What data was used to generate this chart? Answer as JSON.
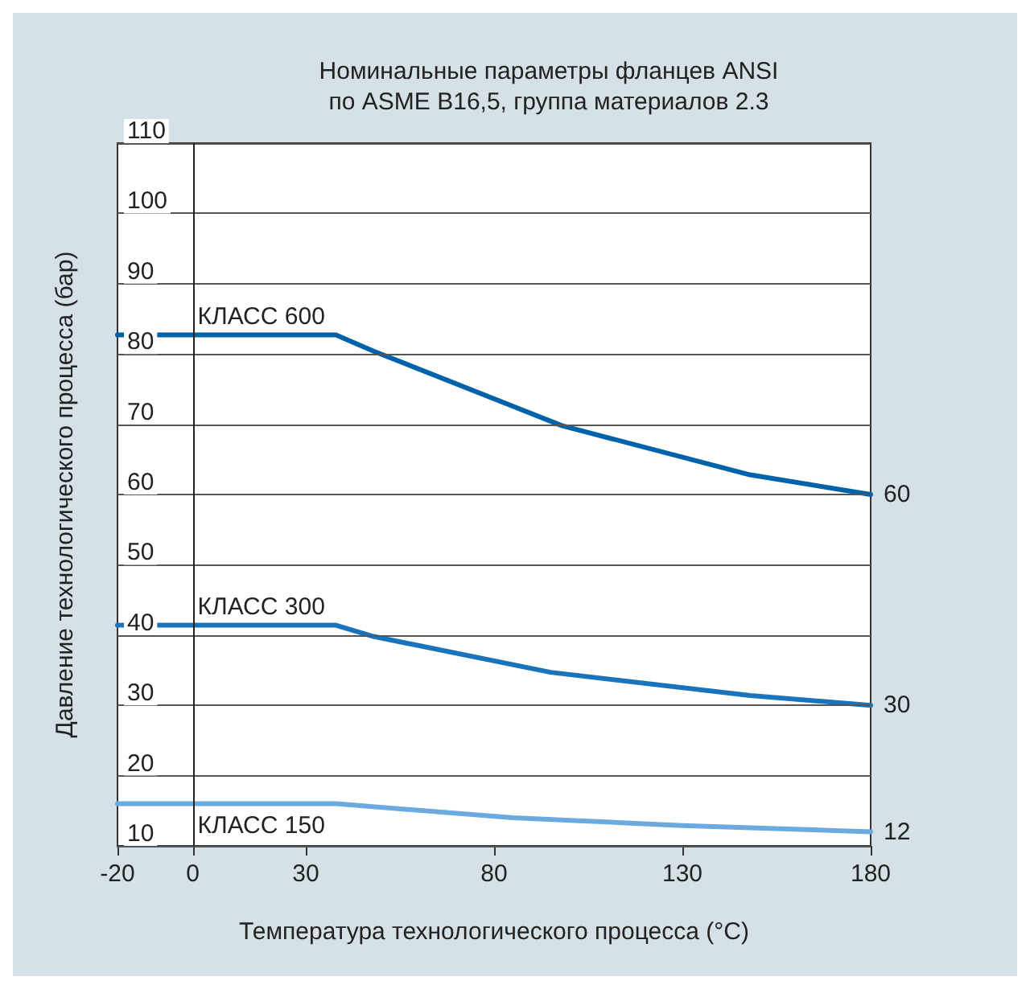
{
  "chart_data": {
    "type": "line",
    "title": "Номинальные параметры фланцев ANSI\nпо ASME B16,5, группа материалов 2.3",
    "xlabel": "Температура технологического процесса (°C)",
    "ylabel": "Давление технологического процесса (бар)",
    "xlim": [
      -20,
      180
    ],
    "xticks": [
      -20,
      0,
      30,
      80,
      130,
      180
    ],
    "ylim": [
      10,
      110
    ],
    "yticks": [
      10,
      20,
      30,
      40,
      50,
      60,
      70,
      80,
      90,
      100,
      110
    ],
    "grid": "y",
    "legend": false,
    "marker": "none",
    "line_style": "solid",
    "ref_lines": [
      {
        "axis": "x",
        "value": 0,
        "color": "#222222"
      }
    ],
    "series": [
      {
        "name": "КЛАСС 600",
        "color": "#0062a8",
        "x": [
          -20,
          38,
          48,
          98,
          148,
          180
        ],
        "values": [
          82.7,
          82.7,
          80.4,
          69.8,
          62.8,
          60
        ],
        "value_labels": [
          null,
          null,
          null,
          null,
          null,
          "60"
        ]
      },
      {
        "name": "КЛАСС 300",
        "color": "#1a74bb",
        "x": [
          -20,
          38,
          48,
          95,
          148,
          180
        ],
        "values": [
          41.4,
          41.4,
          39.8,
          34.7,
          31.4,
          30
        ],
        "value_labels": [
          null,
          null,
          null,
          null,
          null,
          "30"
        ]
      },
      {
        "name": "КЛАСС 150",
        "color": "#6aaade",
        "x": [
          -20,
          38,
          85,
          130,
          180
        ],
        "values": [
          16,
          16,
          14,
          12.9,
          12
        ],
        "value_labels": [
          null,
          null,
          null,
          null,
          "12"
        ]
      }
    ]
  }
}
